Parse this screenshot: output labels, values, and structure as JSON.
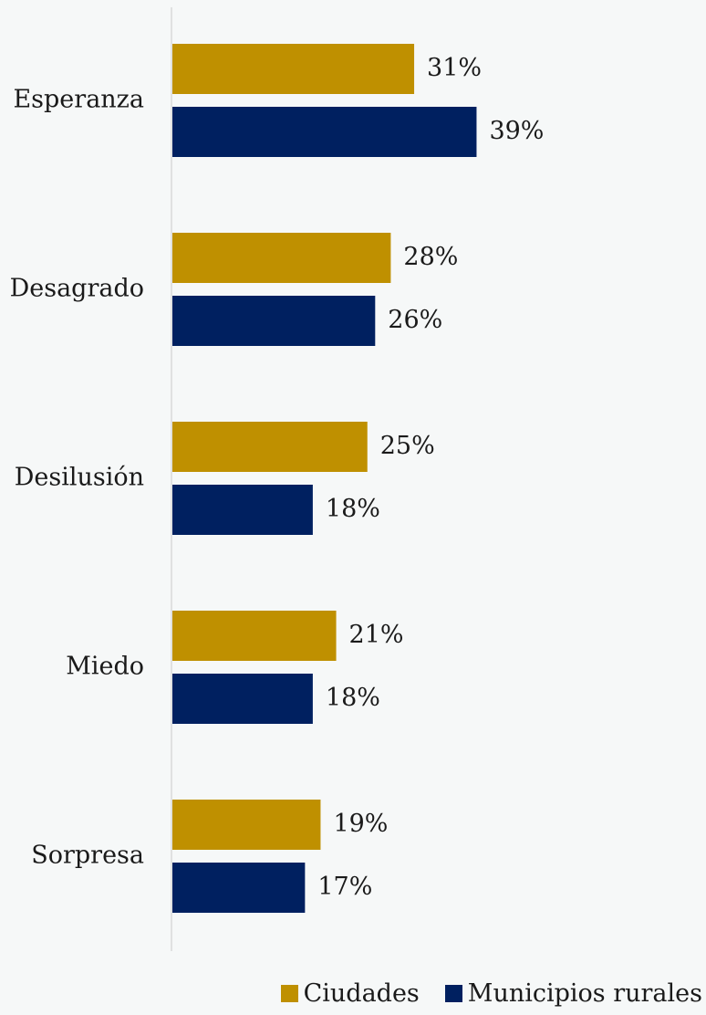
{
  "chart_data": {
    "type": "bar",
    "orientation": "horizontal",
    "categories": [
      "Esperanza",
      "Desagrado",
      "Desilusión",
      "Miedo",
      "Sorpresa"
    ],
    "series": [
      {
        "name": "Ciudades",
        "values": [
          31,
          28,
          25,
          21,
          19
        ],
        "labels": [
          "31%",
          "28%",
          "25%",
          "21%",
          "19%"
        ],
        "color": "#bf9000"
      },
      {
        "name": "Municipios rurales",
        "values": [
          39,
          26,
          18,
          18,
          17
        ],
        "labels": [
          "39%",
          "26%",
          "18%",
          "18%",
          "17%"
        ],
        "color": "#002060"
      }
    ],
    "xlim": [
      0,
      69
    ],
    "grid": false,
    "legend": "bottom-right",
    "axis_color": "#d9d9d9"
  }
}
